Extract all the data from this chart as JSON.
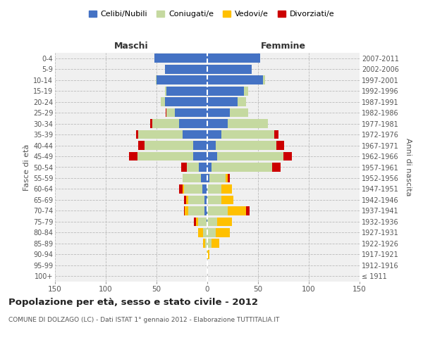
{
  "age_groups": [
    "100+",
    "95-99",
    "90-94",
    "85-89",
    "80-84",
    "75-79",
    "70-74",
    "65-69",
    "60-64",
    "55-59",
    "50-54",
    "45-49",
    "40-44",
    "35-39",
    "30-34",
    "25-29",
    "20-24",
    "15-19",
    "10-14",
    "5-9",
    "0-4"
  ],
  "birth_years": [
    "≤ 1911",
    "1912-1916",
    "1917-1921",
    "1922-1926",
    "1927-1931",
    "1932-1936",
    "1937-1941",
    "1942-1946",
    "1947-1951",
    "1952-1956",
    "1957-1961",
    "1962-1966",
    "1967-1971",
    "1972-1976",
    "1977-1981",
    "1982-1986",
    "1987-1991",
    "1992-1996",
    "1997-2001",
    "2002-2006",
    "2007-2011"
  ],
  "maschi": {
    "celibi": [
      0,
      0,
      0,
      0,
      0,
      1,
      3,
      3,
      5,
      6,
      8,
      14,
      14,
      24,
      28,
      32,
      42,
      40,
      50,
      42,
      52
    ],
    "coniugati": [
      0,
      0,
      1,
      2,
      4,
      8,
      16,
      16,
      18,
      18,
      12,
      55,
      48,
      44,
      26,
      8,
      4,
      2,
      1,
      0,
      0
    ],
    "vedovi": [
      0,
      0,
      0,
      2,
      5,
      2,
      3,
      2,
      1,
      0,
      0,
      0,
      0,
      0,
      0,
      0,
      0,
      0,
      0,
      0,
      0
    ],
    "divorziati": [
      0,
      0,
      0,
      0,
      0,
      2,
      1,
      2,
      4,
      0,
      6,
      8,
      6,
      2,
      2,
      1,
      0,
      0,
      0,
      0,
      0
    ]
  },
  "femmine": {
    "nubili": [
      0,
      0,
      0,
      0,
      0,
      0,
      0,
      0,
      0,
      2,
      4,
      10,
      8,
      14,
      20,
      22,
      30,
      36,
      55,
      44,
      52
    ],
    "coniugate": [
      0,
      0,
      0,
      4,
      8,
      10,
      20,
      14,
      14,
      16,
      60,
      65,
      60,
      52,
      40,
      18,
      8,
      4,
      2,
      0,
      0
    ],
    "vedove": [
      0,
      0,
      2,
      8,
      14,
      14,
      18,
      12,
      10,
      2,
      0,
      0,
      0,
      0,
      0,
      0,
      0,
      0,
      0,
      0,
      0
    ],
    "divorziate": [
      0,
      0,
      0,
      0,
      0,
      0,
      4,
      0,
      0,
      2,
      8,
      8,
      8,
      4,
      0,
      0,
      0,
      0,
      0,
      0,
      0
    ]
  },
  "colors": {
    "celibi": "#4472c4",
    "coniugati": "#c5d9a0",
    "vedovi": "#ffc000",
    "divorziati": "#cc0000"
  },
  "xlim": 150,
  "title": "Popolazione per età, sesso e stato civile - 2012",
  "subtitle": "COMUNE DI DOLZAGO (LC) - Dati ISTAT 1° gennaio 2012 - Elaborazione TUTTITALIA.IT",
  "ylabel_left": "Fasce di età",
  "ylabel_right": "Anni di nascita",
  "legend_labels": [
    "Celibi/Nubili",
    "Coniugati/e",
    "Vedovi/e",
    "Divorziati/e"
  ],
  "maschi_label": "Maschi",
  "femmine_label": "Femmine",
  "bg_color": "#ffffff",
  "plot_bg": "#f0f0f0"
}
